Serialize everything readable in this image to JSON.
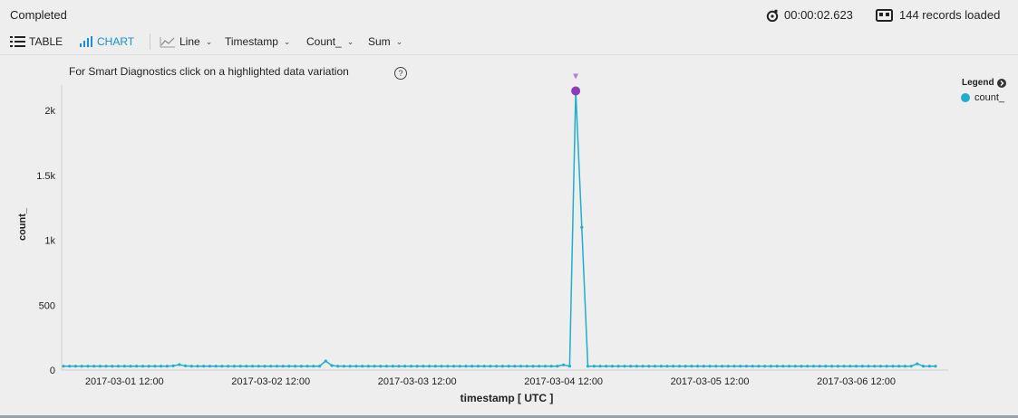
{
  "header": {
    "status": "Completed",
    "elapsed": "00:00:02.623",
    "records": "144 records loaded"
  },
  "toolbar": {
    "table_label": "TABLE",
    "chart_label": "CHART",
    "chart_type": "Line",
    "x_field": "Timestamp",
    "y_field": "Count_",
    "aggregation": "Sum"
  },
  "hint": "For Smart Diagnostics click on a highlighted data variation",
  "help_symbol": "?",
  "legend": {
    "title": "Legend",
    "series": "count_"
  },
  "colors": {
    "series": "#1eaed0",
    "highlight": "#8e3bbd",
    "accent": "#1a8fd6"
  },
  "chart_data": {
    "type": "line",
    "xlabel": "timestamp [ UTC ]",
    "ylabel": "count_",
    "ylim": [
      0,
      2200
    ],
    "yticks": [
      0,
      500,
      1000,
      1500,
      2000
    ],
    "ytick_labels": [
      "0",
      "500",
      "1k",
      "1.5k",
      "2k"
    ],
    "xtick_labels": [
      "2017-03-01 12:00",
      "2017-03-02 12:00",
      "2017-03-03 12:00",
      "2017-03-04 12:00",
      "2017-03-05 12:00",
      "2017-03-06 12:00"
    ],
    "series": [
      {
        "name": "count_",
        "values": [
          30,
          30,
          30,
          30,
          30,
          30,
          30,
          30,
          30,
          30,
          30,
          30,
          30,
          30,
          30,
          30,
          30,
          30,
          32,
          42,
          32,
          30,
          30,
          30,
          30,
          30,
          30,
          30,
          30,
          30,
          30,
          30,
          30,
          30,
          30,
          30,
          30,
          30,
          30,
          30,
          30,
          30,
          30,
          70,
          35,
          30,
          30,
          30,
          30,
          30,
          30,
          30,
          30,
          30,
          30,
          30,
          30,
          30,
          30,
          30,
          30,
          30,
          30,
          30,
          30,
          30,
          30,
          30,
          30,
          30,
          30,
          30,
          30,
          30,
          30,
          30,
          30,
          30,
          30,
          30,
          30,
          30,
          40,
          30,
          2150,
          1100,
          30,
          30,
          30,
          30,
          30,
          30,
          30,
          30,
          30,
          30,
          30,
          30,
          30,
          30,
          30,
          30,
          30,
          30,
          30,
          30,
          30,
          30,
          30,
          30,
          30,
          30,
          30,
          30,
          30,
          30,
          30,
          30,
          30,
          30,
          30,
          30,
          30,
          30,
          30,
          30,
          30,
          30,
          30,
          30,
          30,
          30,
          30,
          30,
          30,
          30,
          30,
          30,
          30,
          30,
          48,
          30,
          30,
          30
        ]
      }
    ],
    "highlight": {
      "index": 84,
      "value": 2150
    }
  }
}
